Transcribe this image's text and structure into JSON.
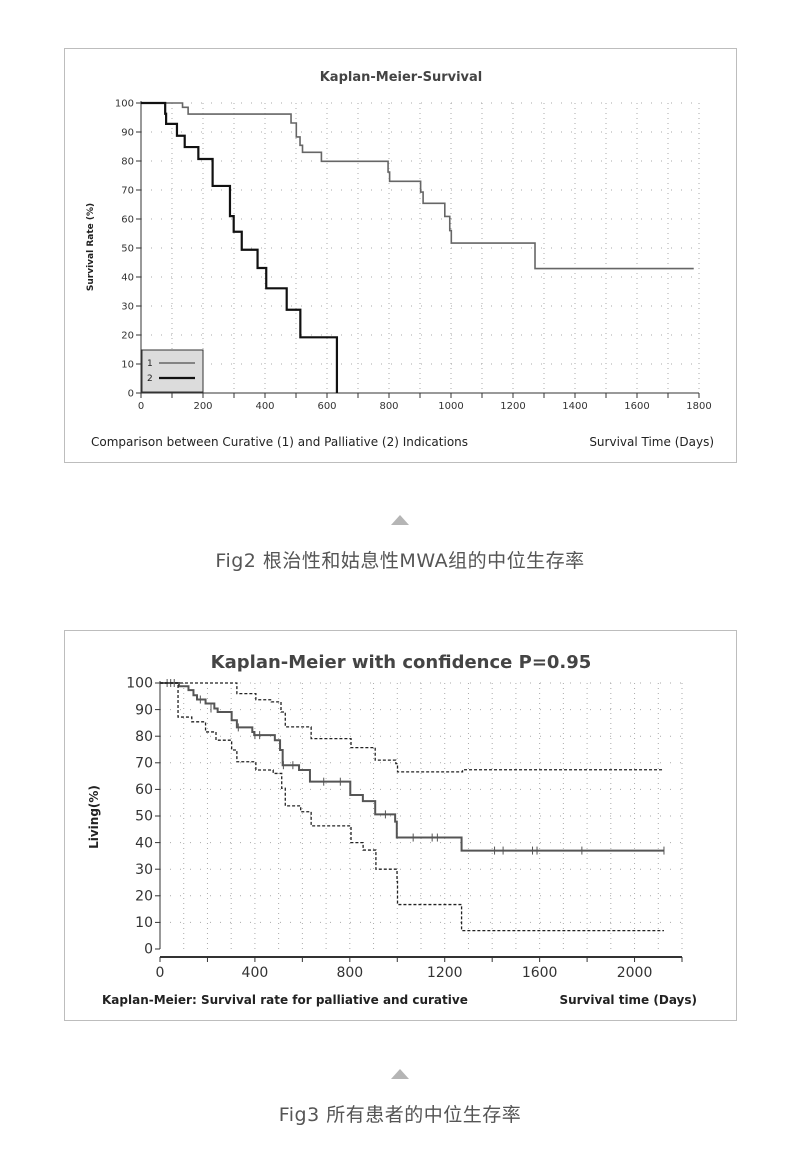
{
  "chart_data": [
    {
      "type": "line",
      "title": "Kaplan-Meier-Survival",
      "xlabel": "Survival Time (Days)",
      "ylabel": "Survival Rate (%)",
      "subtitle": "Comparison between Curative (1) and Palliative (2) Indications",
      "xlim": [
        0,
        1800
      ],
      "ylim": [
        0,
        100
      ],
      "xticks": [
        0,
        200,
        400,
        600,
        800,
        1000,
        1200,
        1400,
        1600,
        1800
      ],
      "yticks": [
        0,
        10,
        20,
        30,
        40,
        50,
        60,
        70,
        80,
        90,
        100
      ],
      "grid": true,
      "step": true,
      "legend_position": "bottom-left",
      "series": [
        {
          "name": "1",
          "color": "#666666",
          "points": [
            [
              0,
              100
            ],
            [
              134,
              98.5
            ],
            [
              152,
              96.2
            ],
            [
              484,
              93.1
            ],
            [
              501,
              88.3
            ],
            [
              513,
              85.4
            ],
            [
              521,
              83
            ],
            [
              582,
              79.9
            ],
            [
              797,
              76.2
            ],
            [
              802,
              73
            ],
            [
              902,
              69.3
            ],
            [
              910,
              65.4
            ],
            [
              980,
              60.9
            ],
            [
              996,
              56
            ],
            [
              1001,
              51.7
            ],
            [
              1271,
              42.9
            ],
            [
              1783,
              42.9
            ]
          ]
        },
        {
          "name": "2",
          "color": "#111111",
          "points": [
            [
              0,
              100
            ],
            [
              78,
              96.3
            ],
            [
              81,
              92.8
            ],
            [
              116,
              88.7
            ],
            [
              141,
              84.8
            ],
            [
              185,
              80.7
            ],
            [
              231,
              71.4
            ],
            [
              287,
              61
            ],
            [
              299,
              55.6
            ],
            [
              325,
              49.4
            ],
            [
              376,
              43.1
            ],
            [
              404,
              36.1
            ],
            [
              470,
              28.7
            ],
            [
              514,
              19.2
            ],
            [
              632,
              19.2
            ],
            [
              632,
              0
            ]
          ]
        }
      ]
    },
    {
      "type": "line",
      "title": "Kaplan-Meier with confidence P=0.95",
      "xlabel": "Survival time (Days)",
      "ylabel": "Living(%)",
      "subtitle": "Kaplan-Meier: Survival rate for palliative and curative",
      "xlim": [
        0,
        2200
      ],
      "ylim": [
        0,
        100
      ],
      "xticks": [
        0,
        400,
        800,
        1200,
        1600,
        2000
      ],
      "yticks": [
        0,
        10,
        20,
        30,
        40,
        50,
        60,
        70,
        80,
        90,
        100
      ],
      "grid": true,
      "step": true,
      "series": [
        {
          "role": "estimate",
          "color": "#555555",
          "dash": false,
          "points": [
            [
              0,
              100
            ],
            [
              80,
              98.8
            ],
            [
              120,
              97.3
            ],
            [
              141,
              95.4
            ],
            [
              156,
              93.8
            ],
            [
              192,
              92.3
            ],
            [
              229,
              90.4
            ],
            [
              243,
              89.1
            ],
            [
              287,
              89.1
            ],
            [
              302,
              86
            ],
            [
              324,
              83.3
            ],
            [
              389,
              81.6
            ],
            [
              397,
              80.4
            ],
            [
              484,
              78.5
            ],
            [
              506,
              74.8
            ],
            [
              517,
              69.1
            ],
            [
              586,
              67.3
            ],
            [
              632,
              62.9
            ],
            [
              797,
              62.9
            ],
            [
              802,
              57.9
            ],
            [
              855,
              55.6
            ],
            [
              907,
              50.6
            ],
            [
              980,
              50.6
            ],
            [
              991,
              47.9
            ],
            [
              998,
              41.9
            ],
            [
              1271,
              41.9
            ],
            [
              1271,
              37
            ],
            [
              2124,
              37
            ]
          ],
          "censored": [
            [
              30,
              100
            ],
            [
              45,
              100
            ],
            [
              60,
              100
            ],
            [
              170,
              93.8
            ],
            [
              215,
              90.4
            ],
            [
              330,
              83.3
            ],
            [
              400,
              80.4
            ],
            [
              420,
              80.4
            ],
            [
              520,
              69.1
            ],
            [
              560,
              69.1
            ],
            [
              690,
              62.9
            ],
            [
              760,
              62.9
            ],
            [
              950,
              50.6
            ],
            [
              1067,
              41.9
            ],
            [
              1147,
              41.9
            ],
            [
              1169,
              41.9
            ],
            [
              1410,
              37
            ],
            [
              1446,
              37
            ],
            [
              1570,
              37
            ],
            [
              1589,
              37
            ],
            [
              1778,
              37
            ],
            [
              2124,
              37
            ]
          ]
        },
        {
          "role": "upper",
          "color": "#222222",
          "dash": true,
          "points": [
            [
              0,
              100
            ],
            [
              287,
              100
            ],
            [
              324,
              96
            ],
            [
              404,
              93.7
            ],
            [
              469,
              92.9
            ],
            [
              510,
              89.1
            ],
            [
              528,
              83.5
            ],
            [
              637,
              82.3
            ],
            [
              637,
              79.1
            ],
            [
              797,
              79.1
            ],
            [
              805,
              75.7
            ],
            [
              907,
              71
            ],
            [
              994,
              69.7
            ],
            [
              1001,
              66.6
            ],
            [
              1271,
              66.6
            ],
            [
              1275,
              67.4
            ],
            [
              2124,
              67.4
            ]
          ]
        },
        {
          "role": "lower",
          "color": "#222222",
          "dash": true,
          "points": [
            [
              0,
              100
            ],
            [
              76,
              99.1
            ],
            [
              76,
              87.2
            ],
            [
              134,
              85.4
            ],
            [
              192,
              81.6
            ],
            [
              236,
              78.5
            ],
            [
              302,
              74.8
            ],
            [
              324,
              70.4
            ],
            [
              404,
              67.3
            ],
            [
              477,
              66
            ],
            [
              513,
              60.4
            ],
            [
              528,
              53.8
            ],
            [
              593,
              51.6
            ],
            [
              637,
              46.3
            ],
            [
              797,
              46.3
            ],
            [
              805,
              40
            ],
            [
              856,
              37.2
            ],
            [
              910,
              30
            ],
            [
              980,
              30
            ],
            [
              999,
              25.4
            ],
            [
              1001,
              16.7
            ],
            [
              1271,
              16.7
            ],
            [
              1271,
              6.9
            ],
            [
              2124,
              6.9
            ]
          ]
        }
      ]
    }
  ],
  "captions": [
    "Fig2 根治性和姑息性MWA组的中位生存率",
    "Fig3 所有患者的中位生存率"
  ]
}
